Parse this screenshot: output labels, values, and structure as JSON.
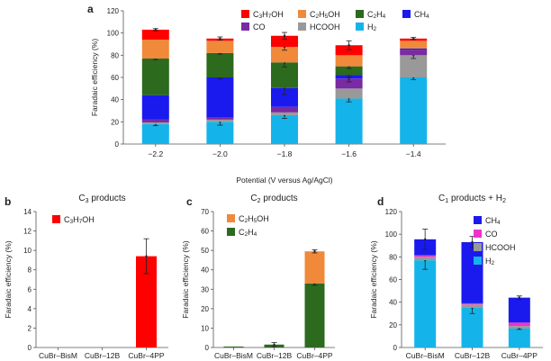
{
  "colors": {
    "C3H7OH": "#ff0000",
    "C2H5OH": "#f0893a",
    "C2H4": "#2c6a1e",
    "CH4": "#1a1aee",
    "CO": "#7a2aa3",
    "HCOOH": "#999999",
    "H2": "#14b4ea",
    "CO_d": "#ee33cc"
  },
  "chart_data": [
    {
      "panel": "a",
      "type": "bar",
      "stacked": true,
      "title": "",
      "xlabel": "Potential (V versus Ag/AgCl)",
      "ylabel": "Faradaic efficiency (%)",
      "ylim": [
        0,
        120
      ],
      "yticks": [
        0,
        20,
        40,
        60,
        80,
        100,
        120
      ],
      "categories": [
        "−2.2",
        "−2.0",
        "−1.8",
        "−1.6",
        "−1.4"
      ],
      "series": [
        {
          "key": "H2",
          "name": "H2",
          "values": [
            18,
            20,
            26,
            41,
            60
          ],
          "err": [
            1.5,
            3,
            3,
            3,
            2
          ]
        },
        {
          "key": "HCOOH",
          "name": "HCOOH",
          "values": [
            1.5,
            2,
            2.5,
            9,
            20
          ],
          "err": [
            0,
            0,
            0,
            0,
            3
          ]
        },
        {
          "key": "CO",
          "name": "CO",
          "values": [
            2.5,
            2,
            5,
            9,
            5
          ],
          "err": [
            0,
            0,
            0,
            3,
            0
          ]
        },
        {
          "key": "CH4",
          "name": "CH4",
          "values": [
            22,
            36,
            17,
            3,
            1
          ],
          "err": [
            0,
            1.5,
            6,
            2,
            0
          ]
        },
        {
          "key": "C2H4",
          "name": "C2H4",
          "values": [
            33,
            22,
            23,
            8,
            0
          ],
          "err": [
            1,
            1,
            4,
            2,
            0
          ]
        },
        {
          "key": "C2H5OH",
          "name": "C2H5OH",
          "values": [
            17,
            11,
            14,
            10,
            7
          ],
          "err": [
            0,
            0,
            3,
            0,
            0
          ]
        },
        {
          "key": "C3H7OH",
          "name": "C3H7OH",
          "values": [
            9,
            2,
            10,
            9,
            2
          ],
          "err": [
            1,
            1.5,
            3,
            4,
            1
          ]
        }
      ],
      "legend": [
        {
          "key": "C3H7OH",
          "label_base": "C",
          "parts": [
            [
              "C",
              ""
            ],
            [
              "3",
              "sub"
            ],
            [
              "H",
              ""
            ],
            [
              "7",
              "sub"
            ],
            [
              "OH",
              ""
            ]
          ]
        },
        {
          "key": "C2H5OH",
          "parts": [
            [
              "C",
              ""
            ],
            [
              "2",
              "sub"
            ],
            [
              "H",
              ""
            ],
            [
              "5",
              "sub"
            ],
            [
              "OH",
              ""
            ]
          ]
        },
        {
          "key": "C2H4",
          "parts": [
            [
              "C",
              ""
            ],
            [
              "2",
              "sub"
            ],
            [
              "H",
              ""
            ],
            [
              "4",
              "sub"
            ]
          ]
        },
        {
          "key": "CH4",
          "parts": [
            [
              "CH",
              ""
            ],
            [
              "4",
              "sub"
            ]
          ]
        },
        {
          "key": "CO",
          "parts": [
            [
              "CO",
              ""
            ]
          ]
        },
        {
          "key": "HCOOH",
          "parts": [
            [
              "HCOOH",
              ""
            ]
          ]
        },
        {
          "key": "H2",
          "parts": [
            [
              "H",
              ""
            ],
            [
              "2",
              "sub"
            ]
          ]
        }
      ]
    },
    {
      "panel": "b",
      "type": "bar",
      "stacked": true,
      "title_parts": [
        [
          "C",
          ""
        ],
        [
          "3",
          "sub"
        ],
        [
          " products",
          ""
        ]
      ],
      "xlabel": "",
      "ylabel": "Faradaic efficiency (%)",
      "ylim": [
        0,
        14
      ],
      "yticks": [
        0,
        2,
        4,
        6,
        8,
        10,
        12,
        14
      ],
      "categories": [
        "CuBr–BisM",
        "CuBr–12B",
        "CuBr–4PP"
      ],
      "series": [
        {
          "key": "C3H7OH",
          "name": "C3H7OH",
          "values": [
            0,
            0,
            9.4
          ],
          "err": [
            0,
            0,
            1.8
          ]
        }
      ],
      "legend": [
        {
          "key": "C3H7OH",
          "parts": [
            [
              "C",
              ""
            ],
            [
              "3",
              "sub"
            ],
            [
              "H",
              ""
            ],
            [
              "7",
              "sub"
            ],
            [
              "OH",
              ""
            ]
          ]
        }
      ]
    },
    {
      "panel": "c",
      "type": "bar",
      "stacked": true,
      "title_parts": [
        [
          "C",
          ""
        ],
        [
          "2",
          "sub"
        ],
        [
          " products",
          ""
        ]
      ],
      "xlabel": "",
      "ylabel": "Faradaic efficiency (%)",
      "ylim": [
        0,
        70
      ],
      "yticks": [
        0,
        10,
        20,
        30,
        40,
        50,
        60,
        70
      ],
      "categories": [
        "CuBr–BisM",
        "CuBr–12B",
        "CuBr–4PP"
      ],
      "series": [
        {
          "key": "C2H4",
          "name": "C2H4",
          "values": [
            0.5,
            1.5,
            33
          ],
          "err": [
            0,
            1,
            1
          ]
        },
        {
          "key": "C2H5OH",
          "name": "C2H5OH",
          "values": [
            0,
            0,
            16.5
          ],
          "err": [
            0,
            0,
            0.8
          ]
        }
      ],
      "legend": [
        {
          "key": "C2H5OH",
          "parts": [
            [
              "C",
              ""
            ],
            [
              "2",
              "sub"
            ],
            [
              "H",
              ""
            ],
            [
              "5",
              "sub"
            ],
            [
              "OH",
              ""
            ]
          ]
        },
        {
          "key": "C2H4",
          "parts": [
            [
              "C",
              ""
            ],
            [
              "2",
              "sub"
            ],
            [
              "H",
              ""
            ],
            [
              "4",
              "sub"
            ]
          ]
        }
      ]
    },
    {
      "panel": "d",
      "type": "bar",
      "stacked": true,
      "title_parts": [
        [
          "C",
          ""
        ],
        [
          "1",
          "sub"
        ],
        [
          " products + H",
          ""
        ],
        [
          "2",
          "sub"
        ]
      ],
      "xlabel": "",
      "ylabel": "Faradaic efficiency (%)",
      "ylim": [
        0,
        120
      ],
      "yticks": [
        0,
        20,
        40,
        60,
        80,
        100,
        120
      ],
      "categories": [
        "CuBr–BisM",
        "CuBr–12B",
        "CuBr–4PP"
      ],
      "series": [
        {
          "key": "H2",
          "name": "H2",
          "values": [
            77,
            35,
            17
          ],
          "err": [
            8,
            5,
            1
          ]
        },
        {
          "key": "HCOOH",
          "name": "HCOOH",
          "values": [
            3,
            3,
            2
          ],
          "err": [
            0,
            0,
            0
          ]
        },
        {
          "key": "CO_d",
          "name": "CO",
          "values": [
            1.5,
            1,
            3
          ],
          "err": [
            0,
            0,
            0
          ]
        },
        {
          "key": "CH4",
          "name": "CH4",
          "values": [
            14,
            54,
            22
          ],
          "err": [
            9,
            5,
            1.5
          ]
        }
      ],
      "legend": [
        {
          "key": "CH4",
          "parts": [
            [
              "CH",
              ""
            ],
            [
              "4",
              "sub"
            ]
          ]
        },
        {
          "key": "CO_d",
          "parts": [
            [
              "CO",
              ""
            ]
          ]
        },
        {
          "key": "HCOOH",
          "parts": [
            [
              "HCOOH",
              ""
            ]
          ]
        },
        {
          "key": "H2",
          "parts": [
            [
              "H",
              ""
            ],
            [
              "2",
              "sub"
            ]
          ]
        }
      ]
    }
  ]
}
